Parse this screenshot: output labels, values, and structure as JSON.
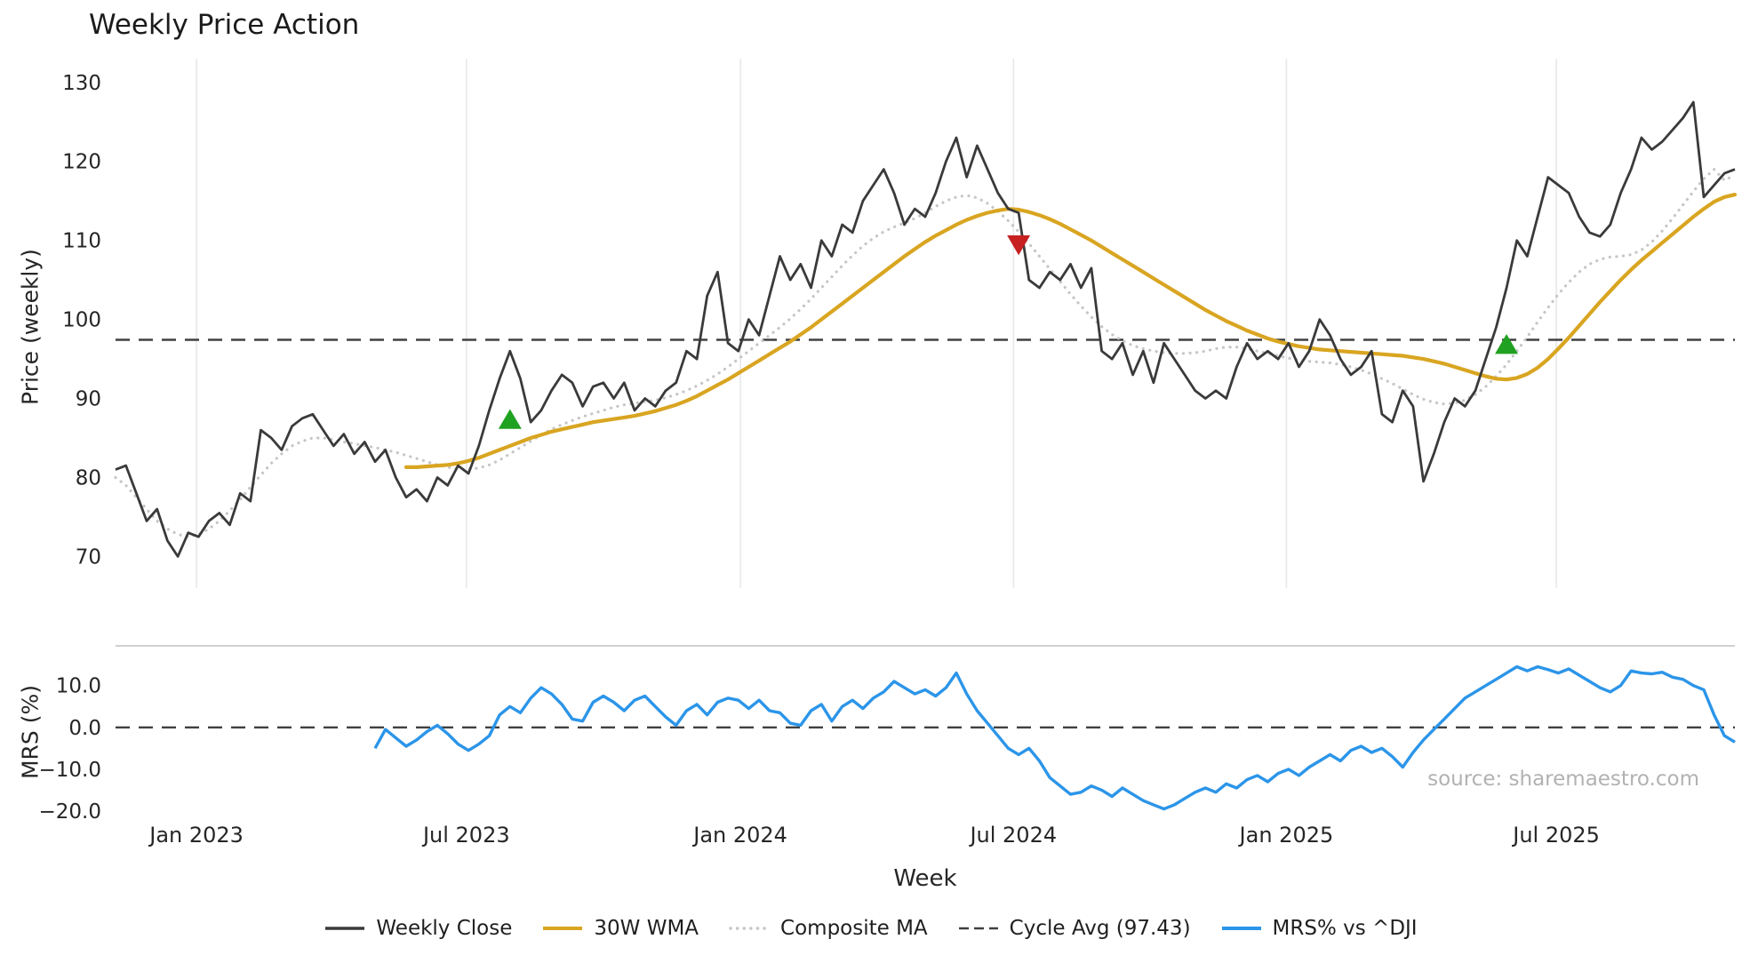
{
  "title": "Weekly Price Action",
  "source_note": "source: sharemaestro.com",
  "colors": {
    "weekly_close": "#3a3a3a",
    "wma": "#d9a521",
    "composite": "#c6c6c6",
    "cycle_avg": "#404040",
    "mrs": "#2b95e9",
    "buy_marker": "#21a121",
    "sell_marker": "#c62020",
    "grid": "#e8e8e8",
    "spine": "#c9c9c9",
    "tick_text": "#262626",
    "source_text": "#b2b2b2"
  },
  "axes": {
    "xlabel": "Week",
    "price_ylabel": "Price (weekly)",
    "mrs_ylabel": "MRS (%)",
    "x_ticks": [
      {
        "week": 7.8,
        "label": "Jan 2023"
      },
      {
        "week": 33.8,
        "label": "Jul 2023"
      },
      {
        "week": 60.2,
        "label": "Jan 2024"
      },
      {
        "week": 86.5,
        "label": "Jul 2024"
      },
      {
        "week": 112.8,
        "label": "Jan 2025"
      },
      {
        "week": 138.8,
        "label": "Jul 2025"
      }
    ],
    "price_ticks": [
      {
        "v": 70,
        "label": "70"
      },
      {
        "v": 80,
        "label": "80"
      },
      {
        "v": 90,
        "label": "90"
      },
      {
        "v": 100,
        "label": "100"
      },
      {
        "v": 110,
        "label": "110"
      },
      {
        "v": 120,
        "label": "120"
      },
      {
        "v": 130,
        "label": "130"
      }
    ],
    "mrs_ticks": [
      {
        "v": 10,
        "label": "10.0"
      },
      {
        "v": 0,
        "label": "0.0"
      },
      {
        "v": -10,
        "label": "−10.0"
      },
      {
        "v": -20,
        "label": "−20.0"
      }
    ]
  },
  "legend": [
    {
      "key": "weekly_close",
      "label": "Weekly Close",
      "style": "solid"
    },
    {
      "key": "wma",
      "label": "30W WMA",
      "style": "solid"
    },
    {
      "key": "composite",
      "label": "Composite MA",
      "style": "dotted"
    },
    {
      "key": "cycle_avg",
      "label": "Cycle Avg (97.43)",
      "style": "dashed"
    },
    {
      "key": "mrs",
      "label": "MRS% vs ^DJI",
      "style": "solid"
    }
  ],
  "chart_data": {
    "type": "line",
    "x_unit": "week_index",
    "n_weeks": 157,
    "x_range_note": "weekly points from ~Nov 2022 to ~Nov 2025",
    "panels": [
      {
        "name": "price",
        "ylim": [
          66,
          132
        ],
        "cycle_avg": 97.43,
        "series": [
          {
            "key": "weekly_close",
            "name": "Weekly Close",
            "style": "solid",
            "start": 0,
            "values": [
              81,
              81.5,
              78,
              74.5,
              76,
              72,
              70,
              73,
              72.5,
              74.5,
              75.5,
              74,
              78,
              77,
              86,
              85,
              83.5,
              86.5,
              87.5,
              88,
              86,
              84,
              85.5,
              83,
              84.5,
              82,
              83.5,
              80,
              77.5,
              78.5,
              77,
              80,
              79,
              81.5,
              80.5,
              84,
              88.5,
              92.5,
              96,
              92.5,
              87,
              88.5,
              91,
              93,
              92,
              89,
              91.5,
              92,
              90,
              92,
              88.5,
              90,
              89,
              91,
              92,
              96,
              95,
              103,
              106,
              97,
              96,
              100,
              98,
              103,
              108,
              105,
              107,
              104,
              110,
              108,
              112,
              111,
              115,
              117,
              119,
              116,
              112,
              114,
              113,
              116,
              120,
              123,
              118,
              122,
              119,
              116,
              114,
              113.5,
              105,
              104,
              106,
              105,
              107,
              104,
              106.5,
              96,
              95,
              97,
              93,
              96,
              92,
              97,
              95,
              93,
              91,
              90,
              91,
              90,
              94,
              97,
              95,
              96,
              95,
              97,
              94,
              96,
              100,
              98,
              95,
              93,
              94,
              96,
              88,
              87,
              91,
              89,
              79.5,
              83,
              87,
              90,
              89,
              91,
              95,
              99,
              104,
              110,
              108,
              113,
              118,
              117,
              116,
              113,
              111,
              110.5,
              112,
              116,
              119,
              123,
              121.5,
              122.5,
              124,
              125.5,
              127.5,
              115.5,
              117,
              118.5,
              119
            ]
          },
          {
            "key": "wma",
            "name": "30W WMA",
            "style": "solid",
            "start": 28,
            "values": [
              81.3,
              81.3,
              81.4,
              81.5,
              81.6,
              81.8,
              82.1,
              82.5,
              83,
              83.5,
              84,
              84.5,
              85,
              85.4,
              85.8,
              86.1,
              86.4,
              86.7,
              87,
              87.2,
              87.4,
              87.6,
              87.8,
              88.1,
              88.4,
              88.8,
              89.2,
              89.7,
              90.3,
              91,
              91.7,
              92.4,
              93.2,
              94,
              94.8,
              95.6,
              96.4,
              97.2,
              98.1,
              99,
              100,
              101,
              102,
              103,
              104,
              105,
              106,
              107,
              108,
              108.9,
              109.8,
              110.6,
              111.3,
              112,
              112.6,
              113.1,
              113.5,
              113.8,
              114,
              113.9,
              113.6,
              113.2,
              112.7,
              112.1,
              111.4,
              110.7,
              110,
              109.2,
              108.4,
              107.6,
              106.8,
              106,
              105.2,
              104.4,
              103.6,
              102.8,
              102,
              101.2,
              100.5,
              99.8,
              99.2,
              98.6,
              98.1,
              97.6,
              97.2,
              96.9,
              96.6,
              96.4,
              96.2,
              96.1,
              96,
              95.9,
              95.8,
              95.7,
              95.6,
              95.5,
              95.4,
              95.2,
              95,
              94.7,
              94.4,
              94,
              93.6,
              93.2,
              92.8,
              92.5,
              92.4,
              92.6,
              93.1,
              93.9,
              95,
              96.3,
              97.7,
              99.2,
              100.7,
              102.2,
              103.6,
              105,
              106.3,
              107.5,
              108.6,
              109.7,
              110.8,
              111.9,
              113,
              114,
              114.9,
              115.5,
              115.8
            ]
          },
          {
            "key": "composite",
            "name": "Composite MA",
            "style": "dotted",
            "start": 0,
            "values": [
              80,
              79,
              77.5,
              76,
              74.5,
              73.5,
              72.8,
              72.5,
              72.8,
              73.5,
              74.5,
              75.8,
              77.2,
              78.8,
              80.3,
              81.8,
              83,
              84,
              84.6,
              85,
              85,
              84.8,
              84.5,
              84.3,
              84,
              83.8,
              83.5,
              83.2,
              82.8,
              82.4,
              82,
              81.6,
              81.3,
              81.1,
              81,
              81.2,
              81.6,
              82.2,
              83,
              83.8,
              84.6,
              85.4,
              86.1,
              86.7,
              87.2,
              87.7,
              88.1,
              88.5,
              88.9,
              89.2,
              89.4,
              89.6,
              89.8,
              90.1,
              90.5,
              91,
              91.6,
              92.3,
              93.1,
              94,
              95,
              96,
              97,
              98,
              99,
              100.1,
              101.3,
              102.6,
              104,
              105.4,
              106.8,
              108.1,
              109.3,
              110.3,
              111.1,
              111.7,
              112.2,
              112.8,
              113.5,
              114.3,
              115,
              115.5,
              115.7,
              115.4,
              114.7,
              113.7,
              112.5,
              111.1,
              109.6,
              108,
              106.4,
              104.8,
              103.2,
              101.7,
              100.3,
              99.1,
              98.1,
              97.3,
              96.7,
              96.3,
              96,
              95.8,
              95.7,
              95.7,
              95.8,
              96,
              96.3,
              96.5,
              96.5,
              96.3,
              96,
              95.7,
              95.4,
              95.1,
              94.9,
              94.7,
              94.6,
              94.5,
              94.3,
              94,
              93.6,
              93.1,
              92.5,
              91.9,
              91.2,
              90.5,
              89.9,
              89.5,
              89.3,
              89.4,
              89.8,
              90.5,
              91.5,
              92.8,
              94.3,
              96,
              97.8,
              99.7,
              101.5,
              103.2,
              104.7,
              106,
              107,
              107.6,
              107.9,
              108,
              108.2,
              108.8,
              109.8,
              111.2,
              112.8,
              114.5,
              116.2,
              117.8,
              119,
              117.6,
              118.3
            ]
          }
        ],
        "signals": [
          {
            "type": "buy",
            "week": 38,
            "price": 87.2
          },
          {
            "type": "sell",
            "week": 87,
            "price": 109.6
          },
          {
            "type": "buy",
            "week": 134,
            "price": 96.7
          }
        ]
      },
      {
        "name": "mrs",
        "ylim": [
          -21.5,
          19.5
        ],
        "zero_line": 0,
        "series": [
          {
            "key": "mrs",
            "name": "MRS% vs ^DJI",
            "style": "solid",
            "start": 25,
            "values": [
              -5,
              -0.5,
              -2.5,
              -4.5,
              -3,
              -1,
              0.5,
              -1.5,
              -4,
              -5.5,
              -4,
              -2,
              3,
              5,
              3.5,
              7,
              9.5,
              8,
              5.5,
              2,
              1.5,
              6,
              7.5,
              6,
              4,
              6.5,
              7.5,
              5,
              2.5,
              0.5,
              4,
              5.5,
              3,
              6,
              7,
              6.5,
              4.5,
              6.5,
              4,
              3.5,
              1,
              0.5,
              4,
              5.5,
              1.5,
              5,
              6.5,
              4.5,
              7,
              8.5,
              11,
              9.5,
              8,
              9,
              7.5,
              9.5,
              13,
              8,
              4,
              1,
              -2,
              -5,
              -6.5,
              -5,
              -8,
              -12,
              -14,
              -16,
              -15.5,
              -14,
              -15,
              -16.5,
              -14.5,
              -16,
              -17.5,
              -18.5,
              -19.5,
              -18.5,
              -17,
              -15.5,
              -14.5,
              -15.5,
              -13.5,
              -14.5,
              -12.5,
              -11.5,
              -13,
              -11,
              -10,
              -11.5,
              -9.5,
              -8,
              -6.5,
              -8,
              -5.5,
              -4.5,
              -6,
              -5,
              -7,
              -9.5,
              -6,
              -3,
              -0.5,
              2,
              4.5,
              7,
              8.5,
              10,
              11.5,
              13,
              14.5,
              13.5,
              14.5,
              13.8,
              13,
              14,
              12.5,
              11,
              9.5,
              8.5,
              10,
              13.5,
              13,
              12.8,
              13.2,
              12,
              11.5,
              10,
              9,
              3,
              -2,
              -3.5
            ]
          }
        ]
      }
    ]
  }
}
